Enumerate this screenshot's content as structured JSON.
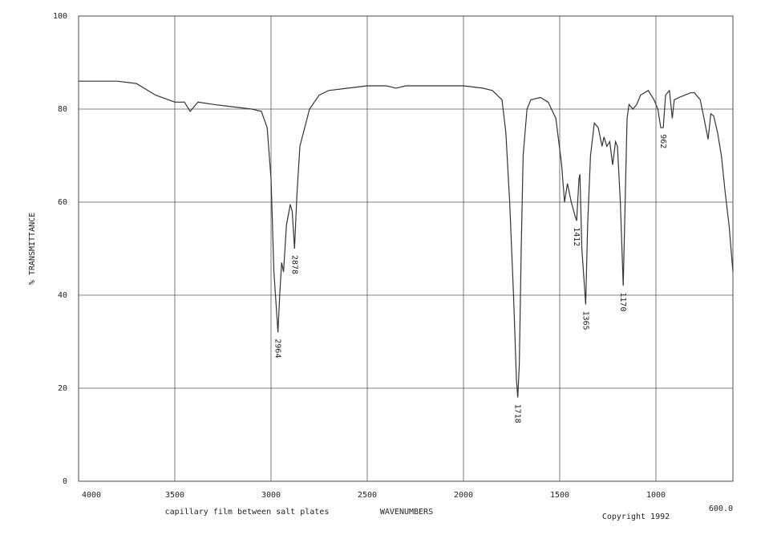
{
  "chart_data": {
    "type": "line",
    "ylabel": "% TRANSMITTANCE",
    "xlabel": "WAVENUMBERS",
    "note": "capillary film between salt plates",
    "copyright": "Copyright 1992",
    "xlim": [
      4000,
      600
    ],
    "ylim": [
      0,
      100
    ],
    "xticks": [
      4000,
      3500,
      3000,
      2500,
      2000,
      1500,
      1000,
      {
        "value": 600,
        "label": "600.0"
      }
    ],
    "yticks": [
      0,
      20,
      40,
      60,
      80,
      100
    ],
    "grid": true,
    "series": [
      {
        "color": "#333333",
        "x": [
          4000,
          3800,
          3700,
          3600,
          3500,
          3450,
          3420,
          3380,
          3300,
          3200,
          3100,
          3050,
          3020,
          3000,
          2985,
          2964,
          2955,
          2945,
          2935,
          2920,
          2900,
          2890,
          2878,
          2865,
          2850,
          2800,
          2750,
          2700,
          2600,
          2500,
          2400,
          2350,
          2300,
          2200,
          2100,
          2000,
          1900,
          1850,
          1800,
          1780,
          1760,
          1740,
          1725,
          1718,
          1710,
          1700,
          1690,
          1670,
          1650,
          1600,
          1560,
          1520,
          1490,
          1475,
          1460,
          1440,
          1420,
          1412,
          1400,
          1395,
          1385,
          1365,
          1355,
          1340,
          1320,
          1300,
          1280,
          1270,
          1255,
          1240,
          1225,
          1210,
          1200,
          1185,
          1170,
          1160,
          1150,
          1140,
          1120,
          1100,
          1080,
          1040,
          1010,
          990,
          975,
          962,
          950,
          930,
          915,
          905,
          880,
          850,
          820,
          800,
          770,
          750,
          729,
          715,
          700,
          680,
          660,
          640,
          620,
          600
        ],
        "values": [
          86,
          86,
          85.5,
          83,
          81.5,
          81.5,
          79.5,
          81.5,
          81,
          80.5,
          80,
          79.5,
          76,
          65,
          45,
          32,
          40,
          47,
          45,
          55,
          59.5,
          58,
          50,
          62,
          72,
          80,
          83,
          84,
          84.5,
          85,
          85,
          84.5,
          85,
          85,
          85,
          85,
          84.5,
          84,
          82,
          75,
          60,
          40,
          22,
          18,
          25,
          50,
          70,
          80,
          82,
          82.5,
          81.5,
          78,
          68,
          60,
          64,
          60,
          57,
          56,
          65,
          66,
          50,
          38,
          55,
          70,
          77,
          76,
          72,
          74,
          72,
          73,
          68,
          73,
          72,
          60,
          42,
          60,
          78,
          81,
          80,
          81,
          83,
          84,
          82,
          80,
          76,
          76,
          83,
          84,
          78,
          82,
          82.5,
          83,
          83.5,
          83.5,
          82,
          78,
          73.5,
          79,
          78.5,
          75,
          70,
          62,
          55,
          45
        ]
      }
    ],
    "peaks": [
      {
        "x": 2964,
        "y": 32
      },
      {
        "x": 2878,
        "y": 50
      },
      {
        "x": 1718,
        "y": 18
      },
      {
        "x": 1412,
        "y": 56
      },
      {
        "x": 1365,
        "y": 38
      },
      {
        "x": 1170,
        "y": 42
      },
      {
        "x": 962,
        "y": 76
      }
    ]
  }
}
